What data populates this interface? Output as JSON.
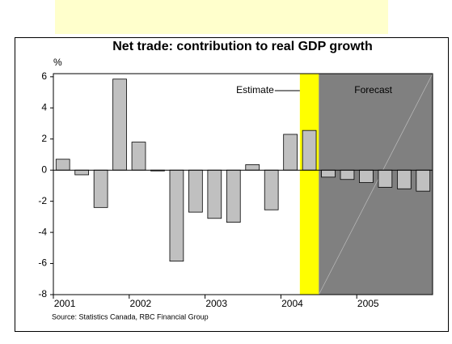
{
  "chart_data": {
    "type": "bar",
    "title": "Net trade: contribution to real GDP growth",
    "y_label": "%",
    "categories": [
      "2001",
      null,
      null,
      null,
      "2002",
      null,
      null,
      null,
      "2003",
      null,
      null,
      null,
      "2004",
      null,
      null,
      null,
      "2005",
      null,
      null,
      null
    ],
    "values": [
      0.7,
      -0.3,
      -2.4,
      5.85,
      1.8,
      -0.05,
      -5.85,
      -2.7,
      -3.1,
      -3.35,
      0.35,
      -2.55,
      2.3,
      2.55,
      -0.45,
      -0.6,
      -0.8,
      -1.1,
      -1.2,
      -1.35
    ],
    "color": "#c0c0c0",
    "ylim": [
      -8,
      6.2
    ],
    "yticks": [
      -8,
      -6,
      -4,
      -2,
      0,
      2,
      4,
      6
    ],
    "shaded_regions": [
      {
        "label": "Estimate",
        "start": 13,
        "end": 14,
        "color": "#ffff00"
      },
      {
        "label": "Forecast",
        "start": 14,
        "end": 20,
        "color": "#808080"
      }
    ],
    "source": "Source: Statistics Canada, RBC Financial Group"
  }
}
